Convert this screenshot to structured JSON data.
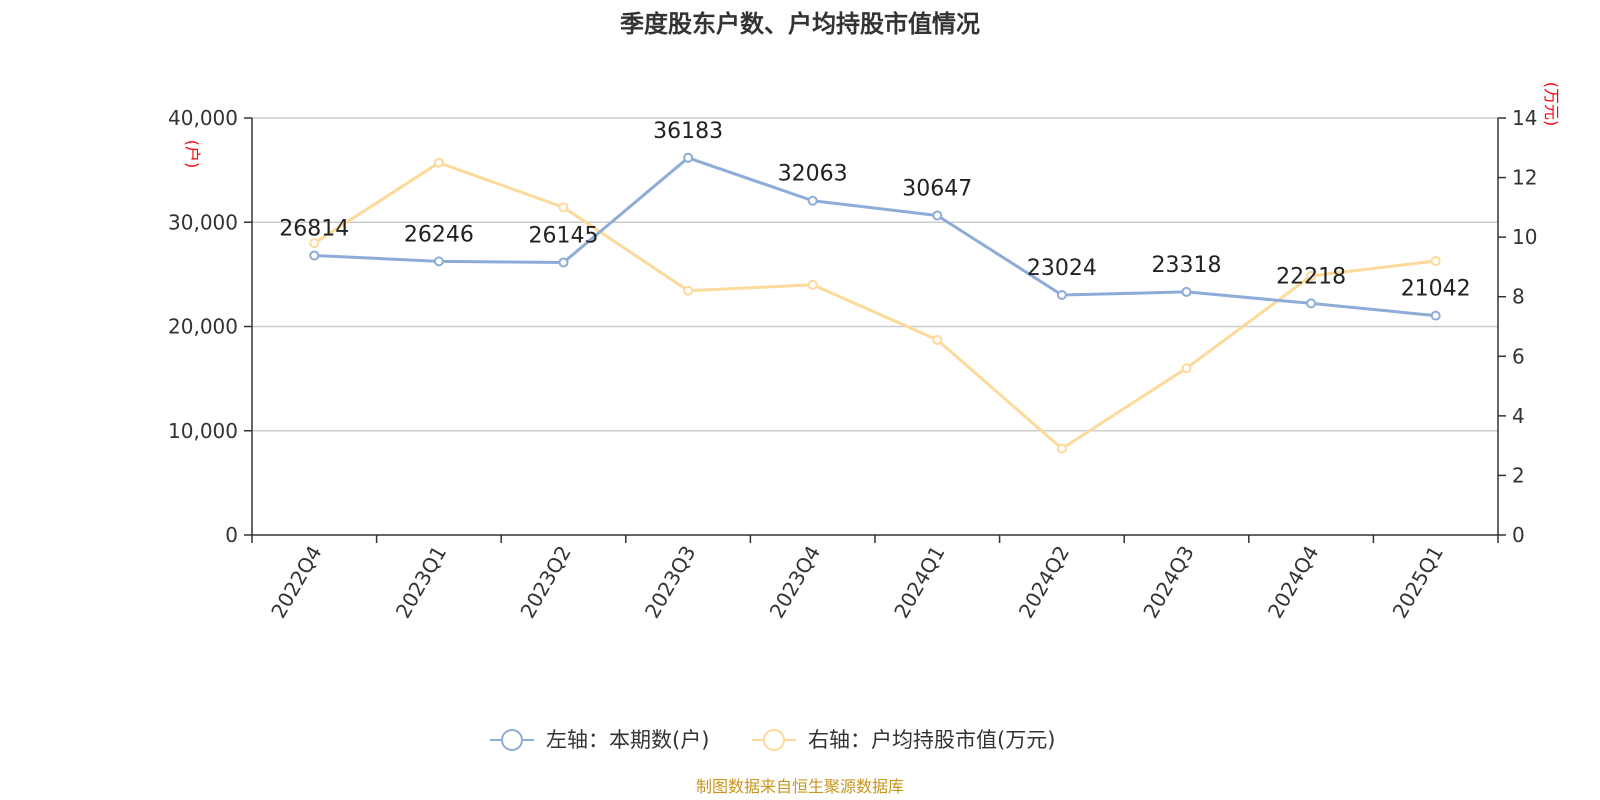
{
  "title": "季度股东户数、户均持股市值情况",
  "left_axis_unit": "(户)",
  "right_axis_unit": "(万元)",
  "legend": {
    "left_series": "左轴：本期数(户)",
    "right_series": "右轴：户均持股市值(万元)"
  },
  "source": "制图数据来自恒生聚源数据库",
  "colors": {
    "left_series": "#8eacd8",
    "right_series": "#fdd99a",
    "grid": "#cccccc",
    "axis": "#333333",
    "unit_text": "#ff0000",
    "source_text": "#c8961e"
  },
  "chart_data": {
    "type": "line",
    "categories": [
      "2022Q4",
      "2023Q1",
      "2023Q2",
      "2023Q3",
      "2023Q4",
      "2024Q1",
      "2024Q2",
      "2024Q3",
      "2024Q4",
      "2025Q1"
    ],
    "series": [
      {
        "name": "左轴：本期数(户)",
        "axis": "left",
        "values": [
          26814,
          26246,
          26145,
          36183,
          32063,
          30647,
          23024,
          23318,
          22218,
          21042
        ],
        "labels": [
          "26814",
          "26246",
          "26145",
          "36183",
          "32063",
          "30647",
          "23024",
          "23318",
          "22218",
          "21042"
        ]
      },
      {
        "name": "右轴：户均持股市值(万元)",
        "axis": "right",
        "values": [
          9.8,
          12.5,
          11.0,
          8.2,
          8.4,
          6.55,
          2.9,
          5.6,
          8.7,
          9.2
        ]
      }
    ],
    "left_axis": {
      "ylim": [
        0,
        40000
      ],
      "ticks": [
        "0",
        "10,000",
        "20,000",
        "30,000",
        "40,000"
      ],
      "tick_values": [
        0,
        10000,
        20000,
        30000,
        40000
      ]
    },
    "right_axis": {
      "ylim": [
        0,
        14
      ],
      "ticks": [
        "0",
        "2",
        "4",
        "6",
        "8",
        "10",
        "12",
        "14"
      ],
      "tick_values": [
        0,
        2,
        4,
        6,
        8,
        10,
        12,
        14
      ]
    },
    "grid": true,
    "legend_position": "bottom-center"
  }
}
